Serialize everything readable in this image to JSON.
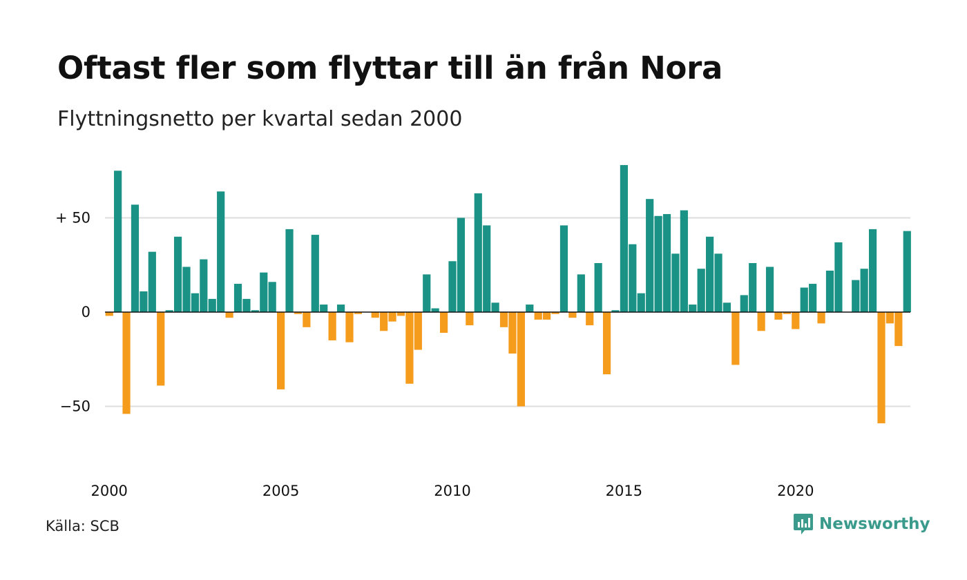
{
  "title": "Oftast fler som flyttar till än från Nora",
  "subtitle": "Flyttningsnetto per kvartal sedan 2000",
  "source": "Källa: SCB",
  "brand": {
    "name": "Newsworthy",
    "icon": "newsworthy-logo-icon",
    "color": "#3a9a8b"
  },
  "colors": {
    "positive": "#1a9386",
    "negative": "#f59c1d",
    "grid": "#dddddd",
    "baseline": "#111111"
  },
  "chart_data": {
    "type": "bar",
    "title": "Oftast fler som flyttar till än från Nora",
    "subtitle": "Flyttningsnetto per kvartal sedan 2000",
    "xlabel": "",
    "ylabel": "",
    "x_start": 2000.0,
    "x_step": 0.25,
    "xlim": [
      2000.0,
      2023.75
    ],
    "ylim": [
      -85,
      80
    ],
    "y_ticks": [
      {
        "value": 50,
        "label": "+ 50"
      },
      {
        "value": 0,
        "label": "0"
      },
      {
        "value": -50,
        "label": "−50"
      }
    ],
    "x_ticks": [
      {
        "value": 2000,
        "label": "2000"
      },
      {
        "value": 2005,
        "label": "2005"
      },
      {
        "value": 2010,
        "label": "2010"
      },
      {
        "value": 2015,
        "label": "2015"
      },
      {
        "value": 2020,
        "label": "2020"
      }
    ],
    "grid": true,
    "values": [
      -2,
      75,
      -54,
      57,
      11,
      32,
      -39,
      1,
      40,
      24,
      10,
      28,
      7,
      64,
      -3,
      15,
      7,
      1,
      21,
      16,
      -41,
      44,
      -1,
      -8,
      41,
      4,
      -15,
      4,
      -16,
      -1,
      0,
      -3,
      -10,
      -5,
      -2,
      -38,
      -20,
      20,
      2,
      -11,
      27,
      50,
      -7,
      63,
      46,
      5,
      -8,
      -22,
      -50,
      4,
      -4,
      -4,
      -1,
      46,
      -3,
      20,
      -7,
      26,
      -33,
      1,
      78,
      36,
      10,
      60,
      51,
      52,
      31,
      54,
      4,
      23,
      40,
      31,
      5,
      -28,
      9,
      26,
      -10,
      24,
      -4,
      -1,
      -9,
      13,
      15,
      -6,
      22,
      37,
      0,
      17,
      23,
      44,
      -59,
      -6,
      -18,
      43
    ]
  }
}
